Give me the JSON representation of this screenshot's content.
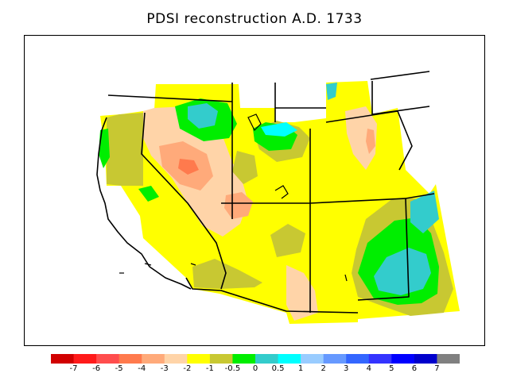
{
  "title": "PDSI reconstruction A.D. 1733",
  "colorbar": {
    "colors": [
      "#d10000",
      "#ff1a1a",
      "#ff4d4d",
      "#ff7a4d",
      "#ffaa7a",
      "#ffd4a8",
      "#ffff00",
      "#c8c832",
      "#00ee00",
      "#33cccc",
      "#00ffff",
      "#99ccff",
      "#6699ff",
      "#3366ff",
      "#3333ff",
      "#0000ff",
      "#0000cc",
      "#808080"
    ],
    "labels": [
      "-7",
      "-6",
      "-5",
      "-4",
      "-3",
      "-2",
      "-1",
      "-0.5",
      "0",
      "0.5",
      "1",
      "2",
      "3",
      "4",
      "5",
      "6",
      "7"
    ]
  },
  "map_colors": {
    "ocean": "#ffffff",
    "wet_neutral": "#ffff00",
    "olive": "#c8c832",
    "peach": "#ffd4a8",
    "light_orange": "#ffaa7a",
    "orange": "#ff7a4d",
    "green": "#00ee00",
    "teal": "#33cccc",
    "cyan": "#00ffff"
  }
}
